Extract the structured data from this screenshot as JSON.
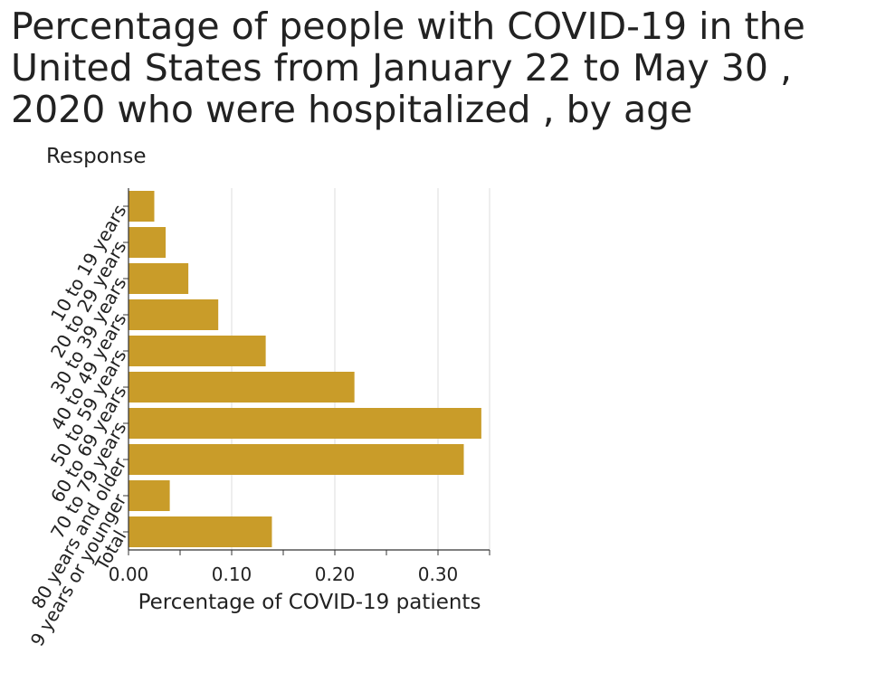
{
  "chart_data": {
    "type": "bar",
    "orientation": "horizontal",
    "title": "Percentage of people with COVID-19 in the United States from January 22 to May 30 , 2020 who were hospitalized , by age",
    "ylabel": "Response",
    "xlabel": "Percentage of COVID-19 patients",
    "categories": [
      "10 to 19 years",
      "20 to 29 years",
      "30 to 39 years",
      "40 to 49 years",
      "50 to 59 years",
      "60 to 69 years",
      "70 to 79 years",
      "80 years and older",
      "9 years or younger",
      "Total"
    ],
    "values": [
      0.025,
      0.036,
      0.058,
      0.087,
      0.133,
      0.219,
      0.342,
      0.325,
      0.04,
      0.139
    ],
    "xticks": [
      "0.00",
      "0.10",
      "0.20",
      "0.30"
    ],
    "xtick_values": [
      0,
      0.1,
      0.2,
      0.3
    ],
    "xlim": [
      0,
      0.35
    ],
    "grid": "vertical",
    "bar_color": "#c99c29"
  }
}
